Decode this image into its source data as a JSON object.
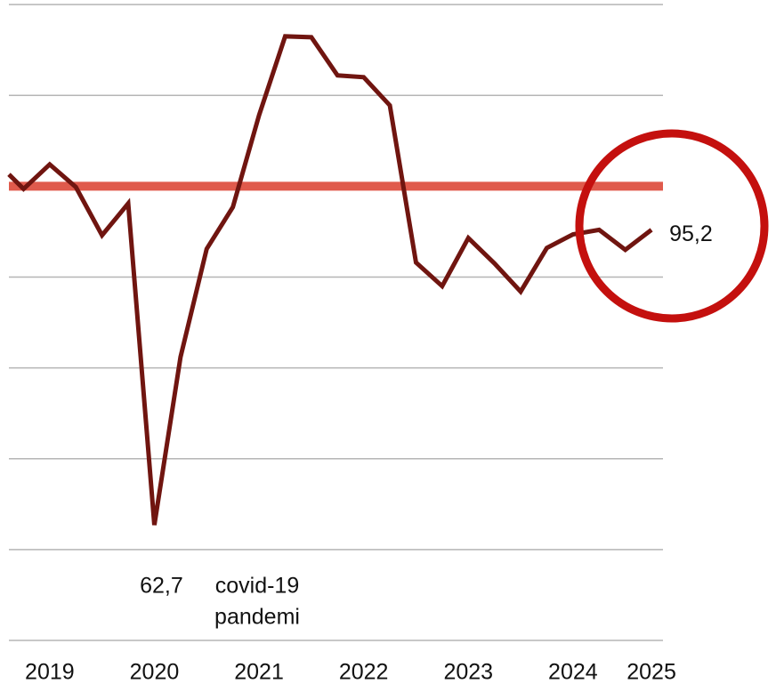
{
  "chart_data": {
    "type": "line",
    "x": [
      2018.86,
      2019,
      2019.25,
      2019.5,
      2019.75,
      2020,
      2020.25,
      2020.5,
      2020.75,
      2021,
      2021.25,
      2021.5,
      2021.75,
      2022,
      2022.25,
      2022.5,
      2022.75,
      2023,
      2023.25,
      2023.5,
      2023.75,
      2024,
      2024.25,
      2024.5,
      2024.75,
      2025
    ],
    "series": [
      {
        "color": "#701510",
        "values": [
          101.3,
          99.7,
          102.4,
          99.9,
          94.6,
          98.1,
          62.7,
          81.2,
          93.1,
          97.7,
          107.8,
          116.5,
          116.4,
          112.2,
          112.0,
          108.9,
          91.6,
          89.0,
          94.3,
          91.5,
          88.4,
          93.2,
          94.7,
          95.2,
          93.0,
          95.2
        ],
        "value_labels": [
          null,
          null,
          null,
          null,
          null,
          null,
          "62,7",
          null,
          null,
          null,
          null,
          null,
          null,
          null,
          null,
          null,
          null,
          null,
          null,
          null,
          null,
          null,
          null,
          null,
          null,
          "95,2"
        ]
      }
    ],
    "reference_line": {
      "value": 100,
      "color": "#e05a4c"
    },
    "annotation": [
      "covid-19",
      "pandemi"
    ],
    "xlim": [
      2018.86,
      2025.11
    ],
    "xticks": [
      {
        "value": 2019.25,
        "label": "2019"
      },
      {
        "value": 2020.25,
        "label": "2020"
      },
      {
        "value": 2021.25,
        "label": "2021"
      },
      {
        "value": 2022.25,
        "label": "2022"
      },
      {
        "value": 2023.25,
        "label": "2023"
      },
      {
        "value": 2024.25,
        "label": "2024"
      },
      {
        "value": 2025,
        "label": "2025"
      }
    ],
    "ylim": [
      50,
      120.5
    ],
    "yticks": [
      50,
      60,
      70,
      80,
      90,
      100,
      110,
      120
    ],
    "grid": true
  }
}
